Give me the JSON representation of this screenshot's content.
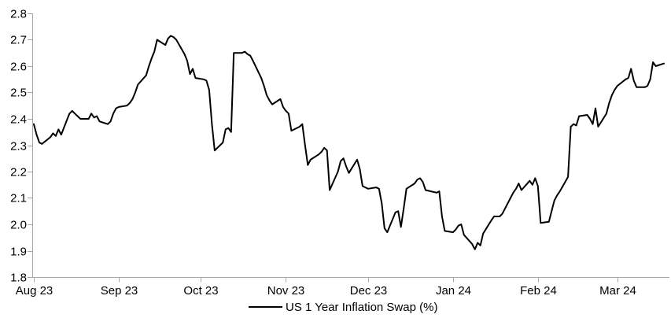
{
  "page": {
    "background": "#ffffff"
  },
  "chart_data": {
    "type": "line",
    "title": "",
    "legend_position": "bottom-center",
    "grid": false,
    "axis_color": "#a6a6a6",
    "label_color": "#000000",
    "series": [
      {
        "name": "US 1 Year Inflation Swap (%)",
        "color": "#000000",
        "stroke_width": 2,
        "dates": [
          "2023-08-01",
          "2023-08-02",
          "2023-08-03",
          "2023-08-04",
          "2023-08-07",
          "2023-08-08",
          "2023-08-09",
          "2023-08-10",
          "2023-08-11",
          "2023-08-14",
          "2023-08-15",
          "2023-08-16",
          "2023-08-17",
          "2023-08-18",
          "2023-08-21",
          "2023-08-22",
          "2023-08-23",
          "2023-08-24",
          "2023-08-25",
          "2023-08-28",
          "2023-08-29",
          "2023-08-30",
          "2023-08-31",
          "2023-09-01",
          "2023-09-04",
          "2023-09-05",
          "2023-09-06",
          "2023-09-07",
          "2023-09-08",
          "2023-09-11",
          "2023-09-12",
          "2023-09-13",
          "2023-09-14",
          "2023-09-15",
          "2023-09-18",
          "2023-09-19",
          "2023-09-20",
          "2023-09-21",
          "2023-09-22",
          "2023-09-25",
          "2023-09-26",
          "2023-09-27",
          "2023-09-28",
          "2023-09-29",
          "2023-10-02",
          "2023-10-03",
          "2023-10-04",
          "2023-10-05",
          "2023-10-06",
          "2023-10-09",
          "2023-10-10",
          "2023-10-11",
          "2023-10-12",
          "2023-10-13",
          "2023-10-16",
          "2023-10-17",
          "2023-10-18",
          "2023-10-19",
          "2023-10-20",
          "2023-10-23",
          "2023-10-24",
          "2023-10-25",
          "2023-10-26",
          "2023-10-27",
          "2023-10-30",
          "2023-10-31",
          "2023-11-01",
          "2023-11-02",
          "2023-11-03",
          "2023-11-06",
          "2023-11-07",
          "2023-11-08",
          "2023-11-09",
          "2023-11-10",
          "2023-11-13",
          "2023-11-14",
          "2023-11-15",
          "2023-11-16",
          "2023-11-17",
          "2023-11-20",
          "2023-11-21",
          "2023-11-22",
          "2023-11-23",
          "2023-11-24",
          "2023-11-27",
          "2023-11-28",
          "2023-11-29",
          "2023-11-30",
          "2023-12-01",
          "2023-12-04",
          "2023-12-05",
          "2023-12-06",
          "2023-12-07",
          "2023-12-08",
          "2023-12-11",
          "2023-12-12",
          "2023-12-13",
          "2023-12-14",
          "2023-12-15",
          "2023-12-18",
          "2023-12-19",
          "2023-12-20",
          "2023-12-21",
          "2023-12-22",
          "2023-12-26",
          "2023-12-27",
          "2023-12-28",
          "2023-12-29",
          "2024-01-01",
          "2024-01-02",
          "2024-01-03",
          "2024-01-04",
          "2024-01-05",
          "2024-01-08",
          "2024-01-09",
          "2024-01-10",
          "2024-01-11",
          "2024-01-12",
          "2024-01-15",
          "2024-01-16",
          "2024-01-17",
          "2024-01-18",
          "2024-01-19",
          "2024-01-22",
          "2024-01-23",
          "2024-01-24",
          "2024-01-25",
          "2024-01-26",
          "2024-01-29",
          "2024-01-30",
          "2024-01-31",
          "2024-02-01",
          "2024-02-02",
          "2024-02-05",
          "2024-02-06",
          "2024-02-07",
          "2024-02-08",
          "2024-02-09",
          "2024-02-12",
          "2024-02-13",
          "2024-02-14",
          "2024-02-15",
          "2024-02-16",
          "2024-02-19",
          "2024-02-20",
          "2024-02-21",
          "2024-02-22",
          "2024-02-23",
          "2024-02-26",
          "2024-02-27",
          "2024-02-28",
          "2024-02-29",
          "2024-03-01",
          "2024-03-04",
          "2024-03-05",
          "2024-03-06",
          "2024-03-07",
          "2024-03-08",
          "2024-03-11",
          "2024-03-12",
          "2024-03-13",
          "2024-03-14",
          "2024-03-15",
          "2024-03-18"
        ],
        "values": [
          2.38,
          2.34,
          2.31,
          2.305,
          2.33,
          2.345,
          2.335,
          2.36,
          2.34,
          2.42,
          2.43,
          2.42,
          2.41,
          2.4,
          2.4,
          2.42,
          2.405,
          2.41,
          2.39,
          2.38,
          2.39,
          2.42,
          2.44,
          2.445,
          2.45,
          2.46,
          2.475,
          2.5,
          2.53,
          2.565,
          2.6,
          2.63,
          2.655,
          2.7,
          2.68,
          2.705,
          2.715,
          2.71,
          2.7,
          2.645,
          2.62,
          2.57,
          2.59,
          2.555,
          2.55,
          2.545,
          2.51,
          2.38,
          2.28,
          2.31,
          2.36,
          2.365,
          2.35,
          2.65,
          2.65,
          2.655,
          2.645,
          2.64,
          2.62,
          2.555,
          2.525,
          2.49,
          2.47,
          2.455,
          2.475,
          2.445,
          2.43,
          2.42,
          2.355,
          2.37,
          2.38,
          2.3,
          2.225,
          2.245,
          2.265,
          2.275,
          2.29,
          2.28,
          2.13,
          2.2,
          2.24,
          2.25,
          2.22,
          2.195,
          2.245,
          2.21,
          2.145,
          2.14,
          2.135,
          2.14,
          2.135,
          2.08,
          1.985,
          1.97,
          2.045,
          2.05,
          1.99,
          2.06,
          2.135,
          2.155,
          2.17,
          2.175,
          2.16,
          2.13,
          2.12,
          2.125,
          2.03,
          1.975,
          1.97,
          1.98,
          1.995,
          2.0,
          1.96,
          1.925,
          1.905,
          1.93,
          1.92,
          1.965,
          2.015,
          2.03,
          2.03,
          2.03,
          2.04,
          2.1,
          2.12,
          2.135,
          2.155,
          2.13,
          2.165,
          2.15,
          2.175,
          2.145,
          2.005,
          2.01,
          2.05,
          2.09,
          2.11,
          2.125,
          2.18,
          2.37,
          2.38,
          2.375,
          2.41,
          2.415,
          2.4,
          2.38,
          2.44,
          2.37,
          2.42,
          2.46,
          2.49,
          2.51,
          2.525,
          2.55,
          2.555,
          2.59,
          2.545,
          2.52,
          2.52,
          2.525,
          2.55,
          2.615,
          2.6,
          2.61
        ]
      }
    ],
    "x_axis": {
      "start": "2023-08-01",
      "end": "2024-03-20",
      "ticks": [
        {
          "date": "2023-08-01",
          "label": "Aug 23"
        },
        {
          "date": "2023-09-01",
          "label": "Sep 23"
        },
        {
          "date": "2023-10-01",
          "label": "Oct 23"
        },
        {
          "date": "2023-11-01",
          "label": "Nov 23"
        },
        {
          "date": "2023-12-01",
          "label": "Dec 23"
        },
        {
          "date": "2024-01-01",
          "label": "Jan 24"
        },
        {
          "date": "2024-02-01",
          "label": "Feb 24"
        },
        {
          "date": "2024-03-01",
          "label": "Mar 24"
        }
      ]
    },
    "y_axis": {
      "min": 1.8,
      "max": 2.8,
      "tick_labels": [
        "1.8",
        "1.9",
        "2.0",
        "2.1",
        "2.2",
        "2.3",
        "2.4",
        "2.5",
        "2.6",
        "2.7",
        "2.8"
      ]
    }
  }
}
